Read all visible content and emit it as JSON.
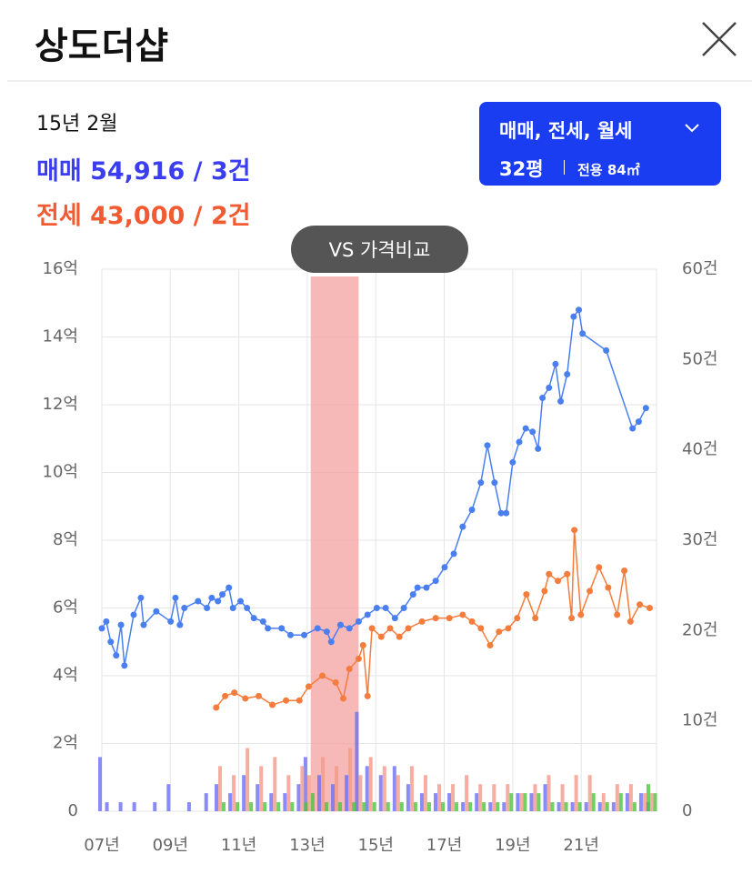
{
  "header": {
    "title": "상도더샵"
  },
  "info": {
    "date": "15년 2월",
    "sale": {
      "label": "매매",
      "text": "54,916 / 3건"
    },
    "jeonse": {
      "label": "전세",
      "text": "43,000 / 2건"
    }
  },
  "filter": {
    "types": "매매, 전세, 월세",
    "size": "32평",
    "area": "전용 84㎡"
  },
  "compare_button": "VS 가격비교",
  "chart_data": {
    "type": "line",
    "xlim": [
      2007,
      2023.2
    ],
    "xticks": [
      {
        "value": 2007,
        "label": "07년"
      },
      {
        "value": 2009,
        "label": "09년"
      },
      {
        "value": 2011,
        "label": "11년"
      },
      {
        "value": 2013,
        "label": "13년"
      },
      {
        "value": 2015,
        "label": "15년"
      },
      {
        "value": 2017,
        "label": "17년"
      },
      {
        "value": 2019,
        "label": "19년"
      },
      {
        "value": 2021,
        "label": "21년"
      }
    ],
    "ylim": [
      0,
      16
    ],
    "yticks": [
      0,
      {
        "value": 2,
        "label": "2억"
      },
      {
        "value": 4,
        "label": "4억"
      },
      {
        "value": 6,
        "label": "6억"
      },
      {
        "value": 8,
        "label": "8억"
      },
      {
        "value": 10,
        "label": "10억"
      },
      {
        "value": 12,
        "label": "12억"
      },
      {
        "value": 14,
        "label": "14억"
      },
      {
        "value": 16,
        "label": "16억"
      }
    ],
    "y2lim": [
      0,
      60
    ],
    "y2ticks": [
      0,
      {
        "value": 10,
        "label": "10건"
      },
      {
        "value": 20,
        "label": "20건"
      },
      {
        "value": 30,
        "label": "30건"
      },
      {
        "value": 40,
        "label": "40건"
      },
      {
        "value": 50,
        "label": "50건"
      },
      {
        "value": 60,
        "label": "60건"
      }
    ],
    "grid": true,
    "highlight_x": [
      2013.1,
      2014.5
    ],
    "series": [
      {
        "color": "#4a7ff0",
        "x": [
          2007.0,
          2007.13,
          2007.26,
          2007.42,
          2007.56,
          2007.66,
          2007.93,
          2008.14,
          2008.22,
          2008.59,
          2009.01,
          2009.15,
          2009.28,
          2009.41,
          2009.81,
          2010.07,
          2010.21,
          2010.39,
          2010.52,
          2010.71,
          2010.83,
          2011.05,
          2011.24,
          2011.44,
          2011.71,
          2011.85,
          2012.25,
          2012.51,
          2012.91,
          2013.3,
          2013.57,
          2013.7,
          2013.97,
          2014.23,
          2014.5,
          2014.76,
          2015.03,
          2015.29,
          2015.56,
          2015.82,
          2016.09,
          2016.22,
          2016.48,
          2016.75,
          2017.01,
          2017.28,
          2017.54,
          2017.81,
          2018.07,
          2018.26,
          2018.47,
          2018.66,
          2018.81,
          2019.0,
          2019.19,
          2019.38,
          2019.58,
          2019.74,
          2019.87,
          2020.06,
          2020.25,
          2020.4,
          2020.59,
          2020.78,
          2020.93,
          2021.04,
          2021.73,
          2022.5,
          2022.68,
          2022.89
        ],
        "values": [
          5.4,
          5.6,
          5.0,
          4.6,
          5.5,
          4.3,
          5.8,
          6.3,
          5.5,
          5.9,
          5.6,
          6.3,
          5.5,
          6.0,
          6.2,
          6.0,
          6.3,
          6.2,
          6.4,
          6.6,
          6.0,
          6.2,
          6.0,
          5.7,
          5.6,
          5.4,
          5.4,
          5.2,
          5.2,
          5.4,
          5.3,
          5.0,
          5.5,
          5.4,
          5.6,
          5.8,
          6.0,
          6.0,
          5.7,
          6.0,
          6.4,
          6.6,
          6.6,
          6.8,
          7.2,
          7.6,
          8.4,
          8.9,
          9.7,
          10.8,
          9.7,
          8.8,
          8.8,
          10.3,
          10.9,
          11.3,
          11.2,
          10.7,
          12.2,
          12.5,
          13.2,
          12.1,
          12.9,
          14.6,
          14.8,
          14.1,
          13.6,
          11.3,
          11.5,
          11.9
        ]
      },
      {
        "color": "#f47c3c",
        "x": [
          2010.34,
          2010.6,
          2010.87,
          2011.19,
          2011.58,
          2011.98,
          2012.38,
          2012.77,
          2013.04,
          2013.44,
          2013.83,
          2014.05,
          2014.23,
          2014.5,
          2014.63,
          2014.76,
          2014.89,
          2015.16,
          2015.42,
          2015.69,
          2015.95,
          2016.35,
          2016.75,
          2017.15,
          2017.54,
          2017.81,
          2018.07,
          2018.34,
          2018.6,
          2018.87,
          2019.13,
          2019.4,
          2019.66,
          2019.93,
          2020.06,
          2020.32,
          2020.59,
          2020.72,
          2020.8,
          2020.99,
          2021.25,
          2021.52,
          2021.79,
          2022.05,
          2022.26,
          2022.44,
          2022.71,
          2023.0
        ],
        "values": [
          3.06,
          3.4,
          3.5,
          3.33,
          3.4,
          3.14,
          3.27,
          3.27,
          3.68,
          4.0,
          3.8,
          3.33,
          4.2,
          4.5,
          4.9,
          3.4,
          5.4,
          5.15,
          5.4,
          5.15,
          5.4,
          5.6,
          5.7,
          5.7,
          5.8,
          5.6,
          5.4,
          4.9,
          5.3,
          5.4,
          5.7,
          6.4,
          5.7,
          6.5,
          7.0,
          6.8,
          7.0,
          5.7,
          8.3,
          5.8,
          6.5,
          7.2,
          6.6,
          5.8,
          7.1,
          5.6,
          6.1,
          6.0
        ]
      }
    ],
    "volume": {
      "x": [
        2007.0,
        2007.2,
        2007.6,
        2008.0,
        2008.6,
        2009.0,
        2009.6,
        2010.1,
        2010.4,
        2010.8,
        2011.2,
        2011.6,
        2012.0,
        2012.4,
        2012.8,
        2013.0,
        2013.4,
        2013.8,
        2014.2,
        2014.5,
        2014.8,
        2015.2,
        2015.6,
        2016.0,
        2016.4,
        2016.8,
        2017.2,
        2017.6,
        2018.0,
        2018.4,
        2018.8,
        2019.2,
        2019.6,
        2020.0,
        2020.4,
        2020.8,
        2021.2,
        2021.6,
        2022.0,
        2022.4,
        2022.8,
        2023.0
      ],
      "series": [
        {
          "color": "#6b6ff5",
          "axis": "y2",
          "values": [
            6,
            1,
            1,
            1,
            1,
            3,
            1,
            2,
            3,
            2,
            4,
            3,
            2,
            2,
            3,
            6,
            4,
            3,
            4,
            11,
            5,
            4,
            5,
            3,
            2,
            2,
            2,
            1,
            2,
            1,
            1,
            2,
            2,
            3,
            1,
            1,
            1,
            1,
            1,
            2,
            2,
            1
          ]
        },
        {
          "color": "#f29a8a",
          "axis": "y2",
          "values": [
            0,
            0,
            0,
            0,
            0,
            0,
            0,
            0,
            5,
            4,
            7,
            5,
            6,
            4,
            5,
            4,
            6,
            5,
            7,
            4,
            6,
            5,
            4,
            5,
            4,
            3,
            3,
            4,
            3,
            3,
            3,
            2,
            3,
            4,
            3,
            4,
            4,
            2,
            3,
            3,
            2,
            2
          ]
        },
        {
          "color": "#4cc43c",
          "axis": "y2",
          "values": [
            0,
            0,
            0,
            0,
            0,
            0,
            0,
            0,
            1,
            1,
            1,
            1,
            1,
            1,
            1,
            2,
            1,
            1,
            1,
            1,
            1,
            1,
            1,
            1,
            1,
            1,
            1,
            1,
            1,
            1,
            2,
            2,
            2,
            1,
            1,
            1,
            2,
            1,
            2,
            1,
            3,
            2
          ]
        }
      ]
    }
  }
}
